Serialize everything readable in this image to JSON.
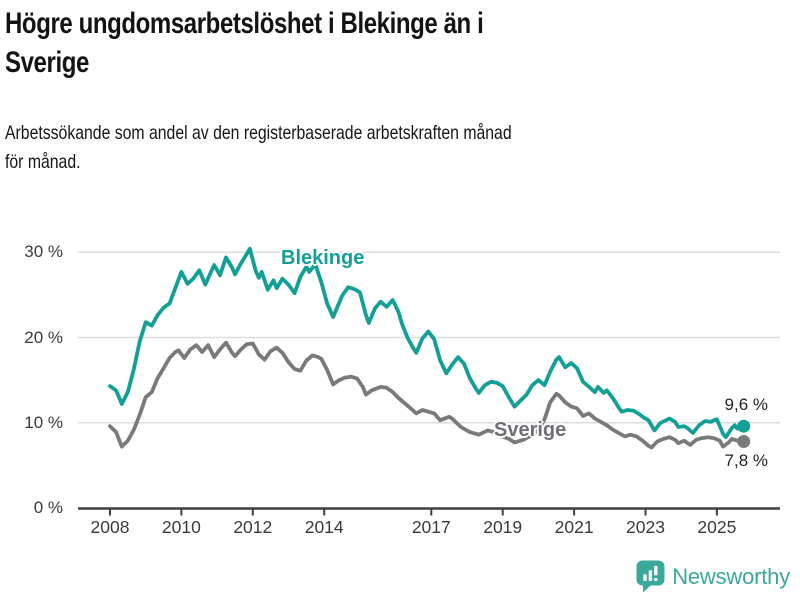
{
  "chart_data": {
    "type": "line",
    "title": "Högre ungdomsarbetslöshet i Blekinge än i Sverige",
    "title_lines": [
      "Högre ungdomsarbetslöshet i Blekinge än i",
      "Sverige"
    ],
    "subtitle": "Arbetssökande som andel av den registerbaserade arbetskraften månad för månad.",
    "subtitle_lines": [
      "Arbetssökande som andel av den registerbaserade arbetskraften månad",
      "för månad."
    ],
    "unit": "%",
    "grid": "horizontal",
    "legend_position": "inline-labels",
    "ylim": [
      0,
      32
    ],
    "xlim": [
      2007.9,
      2026.7
    ],
    "y_ticks": [
      {
        "value": 0,
        "label": "0 %"
      },
      {
        "value": 10,
        "label": "10 %"
      },
      {
        "value": 20,
        "label": "20 %"
      },
      {
        "value": 30,
        "label": "30 %"
      }
    ],
    "x_ticks": [
      {
        "year": 2008,
        "label": "2008"
      },
      {
        "year": 2010,
        "label": "2010"
      },
      {
        "year": 2012,
        "label": "2012"
      },
      {
        "year": 2014,
        "label": "2014"
      },
      {
        "year": 2017,
        "label": "2017"
      },
      {
        "year": 2019,
        "label": "2019"
      },
      {
        "year": 2021,
        "label": "2021"
      },
      {
        "year": 2023,
        "label": "2023"
      },
      {
        "year": 2025,
        "label": "2025"
      }
    ],
    "series": [
      {
        "name": "Blekinge",
        "color": "#12a096",
        "end_label": "9,6 %",
        "end_value": 9.6,
        "points": [
          [
            2008.0,
            14.3
          ],
          [
            2008.17,
            13.8
          ],
          [
            2008.33,
            12.2
          ],
          [
            2008.5,
            13.6
          ],
          [
            2008.67,
            16.3
          ],
          [
            2008.83,
            19.5
          ],
          [
            2009.0,
            21.8
          ],
          [
            2009.17,
            21.4
          ],
          [
            2009.33,
            22.6
          ],
          [
            2009.5,
            23.5
          ],
          [
            2009.67,
            24.0
          ],
          [
            2009.83,
            25.8
          ],
          [
            2010.0,
            27.7
          ],
          [
            2010.17,
            26.3
          ],
          [
            2010.33,
            26.9
          ],
          [
            2010.5,
            27.9
          ],
          [
            2010.67,
            26.2
          ],
          [
            2010.83,
            27.7
          ],
          [
            2010.92,
            28.5
          ],
          [
            2011.08,
            27.3
          ],
          [
            2011.25,
            29.4
          ],
          [
            2011.42,
            28.2
          ],
          [
            2011.5,
            27.4
          ],
          [
            2011.67,
            28.7
          ],
          [
            2011.83,
            29.8
          ],
          [
            2011.92,
            30.4
          ],
          [
            2012.08,
            27.8
          ],
          [
            2012.17,
            27.0
          ],
          [
            2012.25,
            27.7
          ],
          [
            2012.42,
            25.6
          ],
          [
            2012.58,
            26.7
          ],
          [
            2012.67,
            25.8
          ],
          [
            2012.83,
            26.9
          ],
          [
            2013.0,
            26.2
          ],
          [
            2013.17,
            25.2
          ],
          [
            2013.33,
            27.1
          ],
          [
            2013.5,
            28.3
          ],
          [
            2013.58,
            27.7
          ],
          [
            2013.75,
            28.6
          ],
          [
            2013.92,
            26.5
          ],
          [
            2014.08,
            24.0
          ],
          [
            2014.25,
            22.4
          ],
          [
            2014.5,
            24.9
          ],
          [
            2014.67,
            25.9
          ],
          [
            2014.83,
            25.7
          ],
          [
            2015.0,
            25.3
          ],
          [
            2015.17,
            22.6
          ],
          [
            2015.25,
            21.7
          ],
          [
            2015.42,
            23.4
          ],
          [
            2015.58,
            24.2
          ],
          [
            2015.75,
            23.6
          ],
          [
            2015.92,
            24.4
          ],
          [
            2016.08,
            23.0
          ],
          [
            2016.17,
            21.7
          ],
          [
            2016.33,
            20.0
          ],
          [
            2016.5,
            18.7
          ],
          [
            2016.58,
            18.2
          ],
          [
            2016.75,
            19.9
          ],
          [
            2016.92,
            20.7
          ],
          [
            2017.08,
            19.8
          ],
          [
            2017.25,
            17.3
          ],
          [
            2017.42,
            15.8
          ],
          [
            2017.58,
            16.8
          ],
          [
            2017.75,
            17.7
          ],
          [
            2017.92,
            16.9
          ],
          [
            2018.08,
            15.2
          ],
          [
            2018.25,
            14.0
          ],
          [
            2018.33,
            13.5
          ],
          [
            2018.5,
            14.4
          ],
          [
            2018.67,
            14.8
          ],
          [
            2018.83,
            14.7
          ],
          [
            2019.0,
            14.3
          ],
          [
            2019.17,
            13.0
          ],
          [
            2019.33,
            11.9
          ],
          [
            2019.5,
            12.6
          ],
          [
            2019.67,
            13.3
          ],
          [
            2019.83,
            14.4
          ],
          [
            2020.0,
            15.0
          ],
          [
            2020.17,
            14.4
          ],
          [
            2020.33,
            16.0
          ],
          [
            2020.5,
            17.4
          ],
          [
            2020.58,
            17.7
          ],
          [
            2020.75,
            16.5
          ],
          [
            2020.92,
            17.0
          ],
          [
            2021.08,
            16.4
          ],
          [
            2021.25,
            14.8
          ],
          [
            2021.42,
            14.2
          ],
          [
            2021.58,
            13.6
          ],
          [
            2021.67,
            14.2
          ],
          [
            2021.83,
            13.5
          ],
          [
            2021.92,
            13.8
          ],
          [
            2022.08,
            12.9
          ],
          [
            2022.25,
            11.8
          ],
          [
            2022.33,
            11.3
          ],
          [
            2022.5,
            11.5
          ],
          [
            2022.67,
            11.4
          ],
          [
            2022.83,
            11.0
          ],
          [
            2022.92,
            10.7
          ],
          [
            2023.08,
            10.3
          ],
          [
            2023.25,
            9.1
          ],
          [
            2023.42,
            10.0
          ],
          [
            2023.58,
            10.3
          ],
          [
            2023.67,
            10.5
          ],
          [
            2023.83,
            10.1
          ],
          [
            2023.92,
            9.5
          ],
          [
            2024.08,
            9.6
          ],
          [
            2024.17,
            9.4
          ],
          [
            2024.33,
            8.8
          ],
          [
            2024.5,
            9.7
          ],
          [
            2024.67,
            10.2
          ],
          [
            2024.83,
            10.1
          ],
          [
            2024.92,
            10.3
          ],
          [
            2025.0,
            10.4
          ],
          [
            2025.17,
            8.7
          ],
          [
            2025.25,
            8.3
          ],
          [
            2025.42,
            9.4
          ],
          [
            2025.5,
            9.7
          ],
          [
            2025.58,
            9.3
          ],
          [
            2025.75,
            9.6
          ]
        ]
      },
      {
        "name": "Sverige",
        "color": "#7a7a7a",
        "end_label": "7,8 %",
        "end_value": 7.8,
        "points": [
          [
            2008.0,
            9.6
          ],
          [
            2008.17,
            8.9
          ],
          [
            2008.33,
            7.2
          ],
          [
            2008.5,
            7.9
          ],
          [
            2008.67,
            9.2
          ],
          [
            2008.83,
            10.9
          ],
          [
            2009.0,
            13.0
          ],
          [
            2009.17,
            13.6
          ],
          [
            2009.33,
            15.2
          ],
          [
            2009.5,
            16.4
          ],
          [
            2009.67,
            17.6
          ],
          [
            2009.83,
            18.3
          ],
          [
            2009.92,
            18.5
          ],
          [
            2010.08,
            17.6
          ],
          [
            2010.25,
            18.6
          ],
          [
            2010.42,
            19.1
          ],
          [
            2010.58,
            18.3
          ],
          [
            2010.75,
            19.1
          ],
          [
            2010.92,
            17.7
          ],
          [
            2011.08,
            18.6
          ],
          [
            2011.25,
            19.4
          ],
          [
            2011.42,
            18.2
          ],
          [
            2011.5,
            17.8
          ],
          [
            2011.67,
            18.6
          ],
          [
            2011.83,
            19.2
          ],
          [
            2012.0,
            19.3
          ],
          [
            2012.17,
            18.0
          ],
          [
            2012.33,
            17.4
          ],
          [
            2012.5,
            18.4
          ],
          [
            2012.67,
            18.8
          ],
          [
            2012.83,
            18.2
          ],
          [
            2013.0,
            17.1
          ],
          [
            2013.17,
            16.3
          ],
          [
            2013.33,
            16.1
          ],
          [
            2013.5,
            17.3
          ],
          [
            2013.67,
            17.9
          ],
          [
            2013.83,
            17.7
          ],
          [
            2013.92,
            17.5
          ],
          [
            2014.08,
            16.2
          ],
          [
            2014.25,
            14.5
          ],
          [
            2014.42,
            15.0
          ],
          [
            2014.58,
            15.3
          ],
          [
            2014.75,
            15.4
          ],
          [
            2014.92,
            15.2
          ],
          [
            2015.08,
            14.2
          ],
          [
            2015.17,
            13.3
          ],
          [
            2015.33,
            13.8
          ],
          [
            2015.58,
            14.2
          ],
          [
            2015.75,
            14.1
          ],
          [
            2015.92,
            13.6
          ],
          [
            2016.08,
            12.9
          ],
          [
            2016.25,
            12.3
          ],
          [
            2016.42,
            11.7
          ],
          [
            2016.58,
            11.1
          ],
          [
            2016.75,
            11.5
          ],
          [
            2016.92,
            11.3
          ],
          [
            2017.08,
            11.1
          ],
          [
            2017.25,
            10.3
          ],
          [
            2017.5,
            10.7
          ],
          [
            2017.58,
            10.5
          ],
          [
            2017.83,
            9.5
          ],
          [
            2018.08,
            8.9
          ],
          [
            2018.33,
            8.6
          ],
          [
            2018.58,
            9.1
          ],
          [
            2018.75,
            8.9
          ],
          [
            2018.92,
            8.5
          ],
          [
            2019.17,
            8.1
          ],
          [
            2019.33,
            7.7
          ],
          [
            2019.58,
            8.0
          ],
          [
            2019.83,
            8.6
          ],
          [
            2020.0,
            9.1
          ],
          [
            2020.17,
            10.4
          ],
          [
            2020.33,
            12.4
          ],
          [
            2020.5,
            13.4
          ],
          [
            2020.58,
            13.2
          ],
          [
            2020.75,
            12.4
          ],
          [
            2020.92,
            11.9
          ],
          [
            2021.08,
            11.7
          ],
          [
            2021.25,
            10.8
          ],
          [
            2021.42,
            11.1
          ],
          [
            2021.58,
            10.5
          ],
          [
            2021.75,
            10.1
          ],
          [
            2021.92,
            9.7
          ],
          [
            2022.08,
            9.2
          ],
          [
            2022.25,
            8.8
          ],
          [
            2022.42,
            8.4
          ],
          [
            2022.58,
            8.6
          ],
          [
            2022.75,
            8.4
          ],
          [
            2022.92,
            7.9
          ],
          [
            2023.08,
            7.3
          ],
          [
            2023.17,
            7.1
          ],
          [
            2023.33,
            7.8
          ],
          [
            2023.5,
            8.1
          ],
          [
            2023.67,
            8.3
          ],
          [
            2023.83,
            8.0
          ],
          [
            2023.92,
            7.6
          ],
          [
            2024.08,
            7.9
          ],
          [
            2024.25,
            7.4
          ],
          [
            2024.42,
            8.0
          ],
          [
            2024.58,
            8.2
          ],
          [
            2024.75,
            8.3
          ],
          [
            2024.92,
            8.2
          ],
          [
            2025.08,
            7.9
          ],
          [
            2025.17,
            7.2
          ],
          [
            2025.33,
            7.7
          ],
          [
            2025.42,
            8.1
          ],
          [
            2025.58,
            7.9
          ],
          [
            2025.75,
            7.8
          ]
        ]
      }
    ]
  },
  "footer": {
    "brand": "Newsworthy",
    "brand_color": "#3ba89d",
    "logo_icon": "bar-chart-speech-bubble-icon"
  },
  "colors": {
    "accent_teal": "#12a096",
    "series_gray": "#7a7a7a",
    "gridline": "#dcdcdc",
    "axis": "#3f3f3f"
  }
}
